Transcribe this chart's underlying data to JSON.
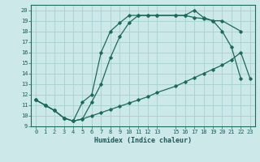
{
  "xlabel": "Humidex (Indice chaleur)",
  "bg_color": "#cce8e8",
  "line_color": "#1a6b5a",
  "grid_color": "#aad4d4",
  "xlim": [
    -0.5,
    23.5
  ],
  "ylim": [
    9,
    20.5
  ],
  "xticks": [
    0,
    1,
    2,
    3,
    4,
    5,
    6,
    7,
    8,
    9,
    10,
    11,
    12,
    13,
    15,
    16,
    17,
    18,
    19,
    20,
    21,
    22,
    23
  ],
  "yticks": [
    9,
    10,
    11,
    12,
    13,
    14,
    15,
    16,
    17,
    18,
    19,
    20
  ],
  "line1_x": [
    0,
    1,
    2,
    3,
    4,
    5,
    6,
    7,
    8,
    9,
    10,
    11,
    12,
    13,
    15,
    16,
    17,
    18,
    19,
    20,
    21,
    22,
    23
  ],
  "line1_y": [
    11.5,
    11.0,
    10.5,
    9.8,
    9.5,
    9.7,
    10.0,
    10.3,
    10.6,
    10.9,
    11.2,
    11.5,
    11.8,
    12.2,
    12.8,
    13.2,
    13.6,
    14.0,
    14.4,
    14.8,
    15.3,
    16.0,
    13.5
  ],
  "line2_x": [
    0,
    1,
    2,
    3,
    4,
    5,
    6,
    7,
    8,
    9,
    10,
    11,
    12,
    13,
    15,
    16,
    17,
    18,
    19,
    20,
    21,
    22
  ],
  "line2_y": [
    11.5,
    11.0,
    10.5,
    9.8,
    9.5,
    11.3,
    12.0,
    16.0,
    18.0,
    18.8,
    19.5,
    19.5,
    19.5,
    19.5,
    19.5,
    19.5,
    19.3,
    19.2,
    19.0,
    18.0,
    16.5,
    13.5
  ],
  "line3_x": [
    0,
    1,
    2,
    3,
    4,
    5,
    6,
    7,
    8,
    9,
    10,
    11,
    12,
    13,
    15,
    16,
    17,
    18,
    19,
    20,
    22
  ],
  "line3_y": [
    11.5,
    11.0,
    10.5,
    9.8,
    9.5,
    9.7,
    11.3,
    13.0,
    15.5,
    17.5,
    18.8,
    19.5,
    19.5,
    19.5,
    19.5,
    19.5,
    20.0,
    19.3,
    19.0,
    19.0,
    18.0
  ]
}
